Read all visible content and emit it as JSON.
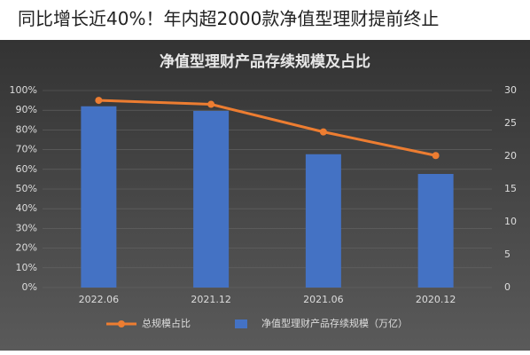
{
  "header": {
    "title": "同比增长近40%！年内超2000款净值型理财提前终止"
  },
  "chart_data": {
    "type": "bar-line",
    "title": "净值型理财产品存续规模及占比",
    "categories": [
      "2022.06",
      "2021.12",
      "2021.06",
      "2020.12"
    ],
    "series": [
      {
        "name": "总规模占比",
        "type": "line",
        "color": "#ed7d31",
        "values": [
          95,
          93,
          79,
          67
        ]
      },
      {
        "name": "净值型理财产品存续规模（万亿）",
        "type": "bar",
        "color": "#4472c4",
        "values": [
          27.6,
          26.9,
          20.3,
          17.3
        ],
        "axis": "y2"
      }
    ],
    "ylim": [
      0,
      100
    ],
    "yticks": [
      {
        "value": 0,
        "label": "0%"
      },
      {
        "value": 10,
        "label": "10%"
      },
      {
        "value": 20,
        "label": "20%"
      },
      {
        "value": 30,
        "label": "30%"
      },
      {
        "value": 40,
        "label": "40%"
      },
      {
        "value": 50,
        "label": "50%"
      },
      {
        "value": 60,
        "label": "60%"
      },
      {
        "value": 70,
        "label": "70%"
      },
      {
        "value": 80,
        "label": "80%"
      },
      {
        "value": 90,
        "label": "90%"
      },
      {
        "value": 100,
        "label": "100%"
      }
    ],
    "y2lim": [
      0,
      30
    ],
    "y2ticks": [
      0,
      5,
      10,
      15,
      20,
      25,
      30
    ],
    "grid": true
  }
}
